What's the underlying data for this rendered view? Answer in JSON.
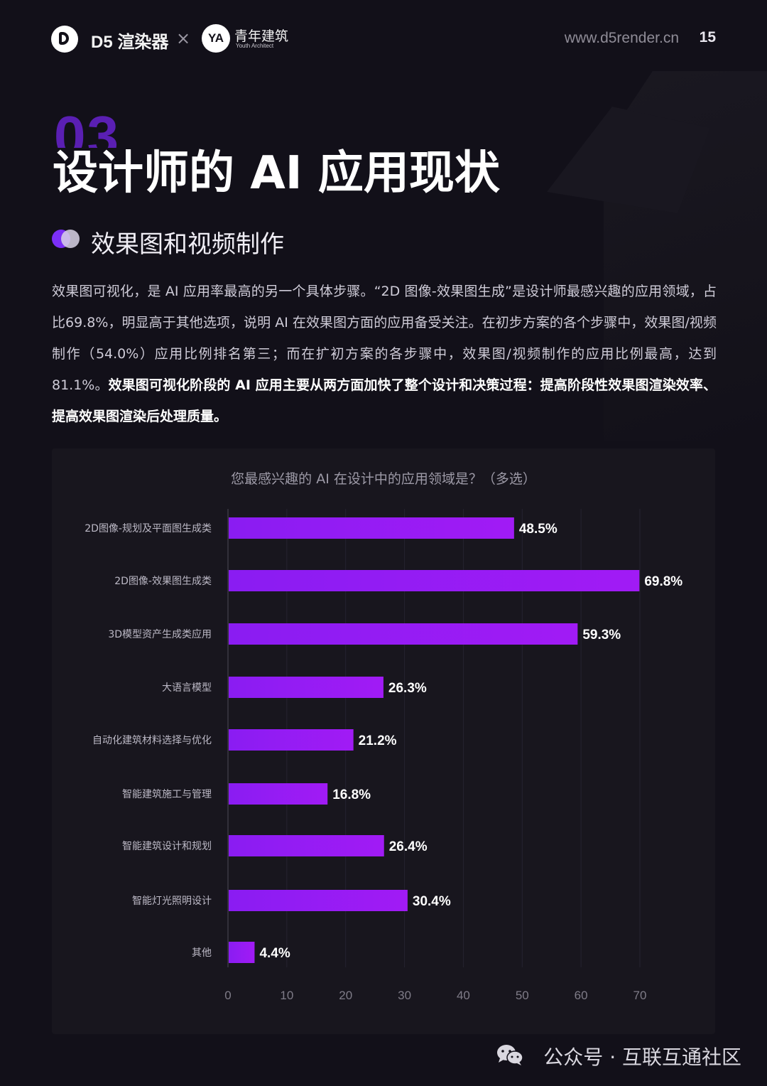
{
  "header": {
    "brand_d5": "D5 渲染器",
    "separator": "×",
    "logo_ya": "YA",
    "brand_ya": "青年建筑",
    "brand_ya_sub": "Youth Architect",
    "url": "www.d5render.cn",
    "page_number": "15"
  },
  "section": {
    "number": "03",
    "title": "设计师的 AI 应用现状",
    "subtitle": "效果图和视频制作"
  },
  "paragraph": {
    "normal": "效果图可视化，是 AI 应用率最高的另一个具体步骤。“2D 图像-效果图生成”是设计师最感兴趣的应用领域，占比69.8%，明显高于其他选项，说明 AI 在效果图方面的应用备受关注。在初步方案的各个步骤中，效果图/视频制作（54.0%）应用比例排名第三；而在扩初方案的各步骤中，效果图/视频制作的应用比例最高，达到81.1%。",
    "bold": "效果图可视化阶段的 AI 应用主要从两方面加快了整个设计和决策过程：提高阶段性效果图渲染效率、提高效果图渲染后处理质量。"
  },
  "chart_data": {
    "type": "bar",
    "orientation": "horizontal",
    "title": "您最感兴趣的 AI 在设计中的应用领域是？（多选）",
    "categories": [
      "2D图像-规划及平面图生成类",
      "2D图像-效果图生成类",
      "3D模型资产生成类应用",
      "大语言模型",
      "自动化建筑材料选择与优化",
      "智能建筑施工与管理",
      "智能建筑设计和规划",
      "智能灯光照明设计",
      "其他"
    ],
    "values": [
      48.5,
      69.8,
      59.3,
      26.3,
      21.2,
      16.8,
      26.4,
      30.4,
      4.4
    ],
    "value_labels": [
      "48.5%",
      "69.8%",
      "59.3%",
      "26.3%",
      "21.2%",
      "16.8%",
      "26.4%",
      "30.4%",
      "4.4%"
    ],
    "xlim": [
      0,
      70
    ],
    "xticks": [
      "0",
      "10",
      "20",
      "30",
      "40",
      "50",
      "60",
      "70"
    ],
    "grid": true,
    "bar_color": "#8a1cf2",
    "bar_color_end": "#a11bf5"
  },
  "footer": {
    "text": "公众号 · 互联互通社区"
  }
}
